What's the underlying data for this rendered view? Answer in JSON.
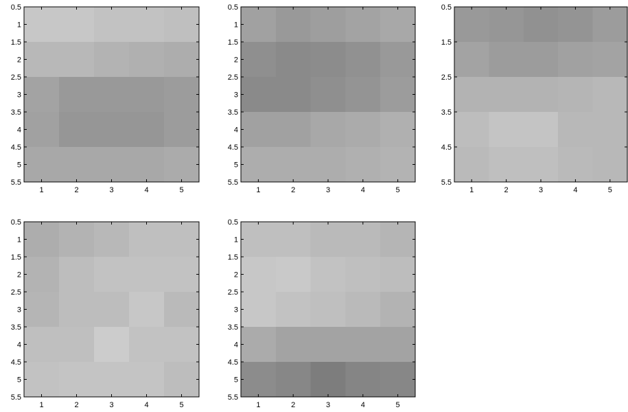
{
  "chart_data": [
    {
      "type": "heatmap",
      "x": [
        1,
        2,
        3,
        4,
        5
      ],
      "y": [
        1,
        2,
        3,
        4,
        5
      ],
      "xlim": [
        0.5,
        5.5
      ],
      "ylim": [
        0.5,
        5.5
      ],
      "y_direction": "top-to-bottom",
      "xticks": [
        "1",
        "2",
        "3",
        "4",
        "5"
      ],
      "yticks": [
        "0.5",
        "1",
        "1.5",
        "2",
        "2.5",
        "3",
        "3.5",
        "4",
        "4.5",
        "5",
        "5.5"
      ],
      "colormap": "gray",
      "values": [
        [
          0.78,
          0.78,
          0.76,
          0.76,
          0.75
        ],
        [
          0.72,
          0.72,
          0.7,
          0.69,
          0.68
        ],
        [
          0.64,
          0.6,
          0.6,
          0.6,
          0.61
        ],
        [
          0.63,
          0.59,
          0.59,
          0.59,
          0.61
        ],
        [
          0.66,
          0.66,
          0.66,
          0.66,
          0.67
        ]
      ]
    },
    {
      "type": "heatmap",
      "x": [
        1,
        2,
        3,
        4,
        5
      ],
      "y": [
        1,
        2,
        3,
        4,
        5
      ],
      "xlim": [
        0.5,
        5.5
      ],
      "ylim": [
        0.5,
        5.5
      ],
      "y_direction": "top-to-bottom",
      "xticks": [
        "1",
        "2",
        "3",
        "4",
        "5"
      ],
      "yticks": [
        "0.5",
        "1",
        "1.5",
        "2",
        "2.5",
        "3",
        "3.5",
        "4",
        "4.5",
        "5",
        "5.5"
      ],
      "colormap": "gray",
      "values": [
        [
          0.63,
          0.6,
          0.62,
          0.64,
          0.66
        ],
        [
          0.56,
          0.54,
          0.55,
          0.57,
          0.6
        ],
        [
          0.54,
          0.54,
          0.56,
          0.58,
          0.61
        ],
        [
          0.63,
          0.63,
          0.66,
          0.67,
          0.69
        ],
        [
          0.68,
          0.68,
          0.68,
          0.69,
          0.7
        ]
      ]
    },
    {
      "type": "heatmap",
      "x": [
        1,
        2,
        3,
        4,
        5
      ],
      "y": [
        1,
        2,
        3,
        4,
        5
      ],
      "xlim": [
        0.5,
        5.5
      ],
      "ylim": [
        0.5,
        5.5
      ],
      "y_direction": "top-to-bottom",
      "xticks": [
        "1",
        "2",
        "3",
        "4",
        "5"
      ],
      "yticks": [
        "0.5",
        "1.5",
        "2.5",
        "3.5",
        "4.5",
        "5.5"
      ],
      "colormap": "gray",
      "values": [
        [
          0.6,
          0.59,
          0.57,
          0.58,
          0.61
        ],
        [
          0.64,
          0.61,
          0.61,
          0.63,
          0.64
        ],
        [
          0.7,
          0.7,
          0.7,
          0.71,
          0.72
        ],
        [
          0.74,
          0.77,
          0.77,
          0.72,
          0.72
        ],
        [
          0.73,
          0.75,
          0.75,
          0.73,
          0.72
        ]
      ]
    },
    {
      "type": "heatmap",
      "x": [
        1,
        2,
        3,
        4,
        5
      ],
      "y": [
        1,
        2,
        3,
        4,
        5
      ],
      "xlim": [
        0.5,
        5.5
      ],
      "ylim": [
        0.5,
        5.5
      ],
      "y_direction": "top-to-bottom",
      "xticks": [
        "1",
        "2",
        "3",
        "4",
        "5"
      ],
      "yticks": [
        "0.5",
        "1",
        "1.5",
        "2",
        "2.5",
        "3",
        "3.5",
        "4",
        "4.5",
        "5",
        "5.5"
      ],
      "colormap": "gray",
      "values": [
        [
          0.68,
          0.7,
          0.72,
          0.75,
          0.75
        ],
        [
          0.7,
          0.74,
          0.76,
          0.76,
          0.76
        ],
        [
          0.71,
          0.74,
          0.74,
          0.78,
          0.73
        ],
        [
          0.75,
          0.75,
          0.8,
          0.76,
          0.76
        ],
        [
          0.76,
          0.77,
          0.77,
          0.77,
          0.74
        ]
      ]
    },
    {
      "type": "heatmap",
      "x": [
        1,
        2,
        3,
        4,
        5
      ],
      "y": [
        1,
        2,
        3,
        4,
        5
      ],
      "xlim": [
        0.5,
        5.5
      ],
      "ylim": [
        0.5,
        5.5
      ],
      "y_direction": "top-to-bottom",
      "xticks": [
        "1",
        "2",
        "3",
        "4",
        "5"
      ],
      "yticks": [
        "0.5",
        "1",
        "1.5",
        "2",
        "2.5",
        "3",
        "3.5",
        "4",
        "4.5",
        "5",
        "5.5"
      ],
      "colormap": "gray",
      "values": [
        [
          0.75,
          0.75,
          0.73,
          0.73,
          0.71
        ],
        [
          0.78,
          0.79,
          0.76,
          0.75,
          0.74
        ],
        [
          0.78,
          0.76,
          0.75,
          0.73,
          0.7
        ],
        [
          0.67,
          0.64,
          0.64,
          0.64,
          0.64
        ],
        [
          0.55,
          0.53,
          0.49,
          0.52,
          0.53
        ]
      ]
    }
  ]
}
